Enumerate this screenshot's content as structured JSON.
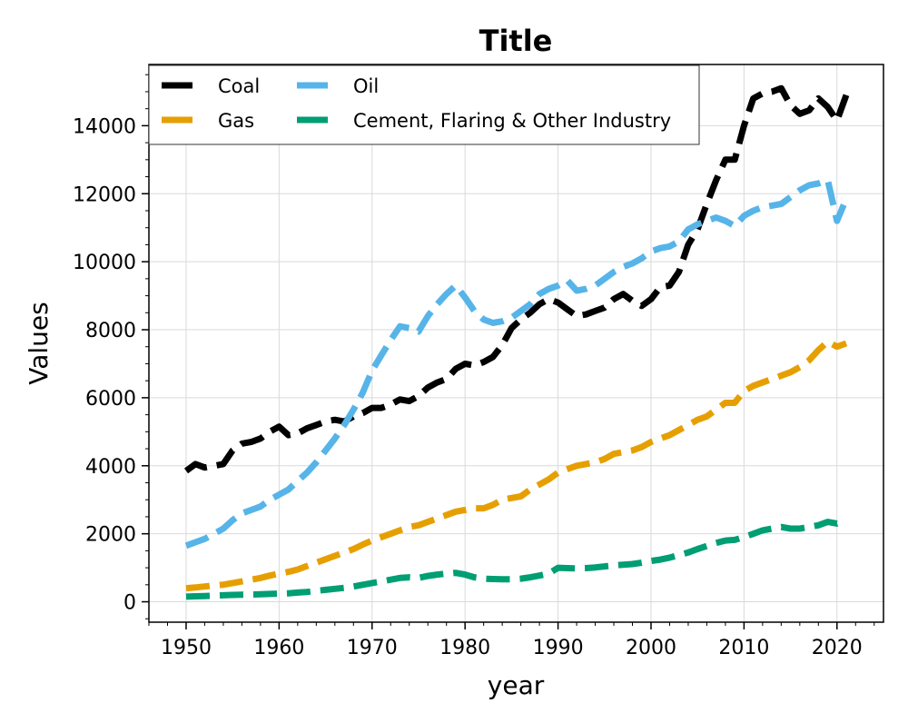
{
  "chart_data": {
    "type": "line",
    "title": "Title",
    "xlabel": "year",
    "ylabel": "Values",
    "xlim": [
      1946,
      2025
    ],
    "ylim": [
      -600,
      15800
    ],
    "xticks": [
      1950,
      1960,
      1970,
      1980,
      1990,
      2000,
      2010,
      2020
    ],
    "yticks": [
      0,
      2000,
      4000,
      6000,
      8000,
      10000,
      12000,
      14000
    ],
    "xtick_labels": [
      "1950",
      "1960",
      "1970",
      "1980",
      "1990",
      "2000",
      "2010",
      "2020"
    ],
    "ytick_labels": [
      "0",
      "2000",
      "4000",
      "6000",
      "8000",
      "10000",
      "12000",
      "14000"
    ],
    "grid": true,
    "legend_position": "top-left",
    "legend_columns": 2,
    "line_style": "dashed",
    "x": [
      1950,
      1951,
      1952,
      1953,
      1954,
      1955,
      1956,
      1957,
      1958,
      1959,
      1960,
      1961,
      1962,
      1963,
      1964,
      1965,
      1966,
      1967,
      1968,
      1969,
      1970,
      1971,
      1972,
      1973,
      1974,
      1975,
      1976,
      1977,
      1978,
      1979,
      1980,
      1981,
      1982,
      1983,
      1984,
      1985,
      1986,
      1987,
      1988,
      1989,
      1990,
      1991,
      1992,
      1993,
      1994,
      1995,
      1996,
      1997,
      1998,
      1999,
      2000,
      2001,
      2002,
      2003,
      2004,
      2005,
      2006,
      2007,
      2008,
      2009,
      2010,
      2011,
      2012,
      2013,
      2014,
      2015,
      2016,
      2017,
      2018,
      2019,
      2020,
      2021
    ],
    "series": [
      {
        "name": "Coal",
        "color": "#000000",
        "values": [
          3850,
          4050,
          3950,
          4000,
          4050,
          4450,
          4650,
          4700,
          4800,
          5000,
          5150,
          4900,
          4950,
          5100,
          5200,
          5300,
          5350,
          5300,
          5450,
          5550,
          5700,
          5700,
          5800,
          5950,
          5900,
          6050,
          6300,
          6450,
          6550,
          6850,
          7000,
          6950,
          7050,
          7200,
          7550,
          8050,
          8300,
          8500,
          8750,
          8900,
          8800,
          8600,
          8400,
          8450,
          8550,
          8650,
          8900,
          9050,
          8850,
          8700,
          8900,
          9250,
          9300,
          9700,
          10500,
          10950,
          11700,
          12400,
          13000,
          13000,
          14000,
          14800,
          14950,
          15000,
          15100,
          14600,
          14350,
          14450,
          14800,
          14550,
          14150,
          14900
        ]
      },
      {
        "name": "Gas",
        "color": "#E69F00",
        "values": [
          400,
          420,
          450,
          480,
          500,
          550,
          600,
          650,
          700,
          770,
          830,
          880,
          950,
          1050,
          1150,
          1250,
          1350,
          1450,
          1550,
          1680,
          1800,
          1900,
          2000,
          2100,
          2200,
          2250,
          2350,
          2450,
          2550,
          2650,
          2700,
          2750,
          2750,
          2850,
          3000,
          3050,
          3100,
          3300,
          3450,
          3600,
          3800,
          3900,
          4000,
          4050,
          4100,
          4200,
          4350,
          4400,
          4450,
          4550,
          4700,
          4800,
          4900,
          5050,
          5200,
          5350,
          5450,
          5650,
          5850,
          5850,
          6200,
          6350,
          6450,
          6550,
          6650,
          6750,
          6900,
          7100,
          7400,
          7650,
          7500,
          7600
        ]
      },
      {
        "name": "Oil",
        "color": "#56B4E9",
        "values": [
          1650,
          1750,
          1850,
          2000,
          2150,
          2400,
          2600,
          2700,
          2800,
          3000,
          3150,
          3300,
          3550,
          3800,
          4100,
          4450,
          4800,
          5200,
          5650,
          6150,
          6800,
          7250,
          7700,
          8100,
          8050,
          7950,
          8400,
          8750,
          9050,
          9300,
          8950,
          8550,
          8300,
          8200,
          8250,
          8350,
          8550,
          8750,
          9050,
          9200,
          9300,
          9450,
          9150,
          9200,
          9300,
          9500,
          9700,
          9850,
          9950,
          10100,
          10300,
          10400,
          10450,
          10600,
          10950,
          11100,
          11200,
          11300,
          11200,
          11050,
          11350,
          11500,
          11600,
          11650,
          11700,
          11900,
          12100,
          12250,
          12300,
          12400,
          11200,
          11850
        ]
      },
      {
        "name": "Cement, Flaring & Other Industry",
        "color": "#009E73",
        "values": [
          150,
          160,
          170,
          180,
          190,
          200,
          210,
          215,
          220,
          230,
          240,
          250,
          270,
          290,
          320,
          350,
          380,
          410,
          450,
          500,
          550,
          600,
          650,
          700,
          720,
          700,
          760,
          800,
          830,
          850,
          800,
          720,
          680,
          670,
          660,
          660,
          680,
          720,
          770,
          830,
          1000,
          990,
          980,
          990,
          1010,
          1040,
          1070,
          1090,
          1110,
          1150,
          1200,
          1240,
          1300,
          1370,
          1450,
          1550,
          1640,
          1730,
          1800,
          1820,
          1900,
          2000,
          2100,
          2150,
          2200,
          2150,
          2150,
          2200,
          2250,
          2350,
          2300,
          2400
        ]
      }
    ]
  }
}
